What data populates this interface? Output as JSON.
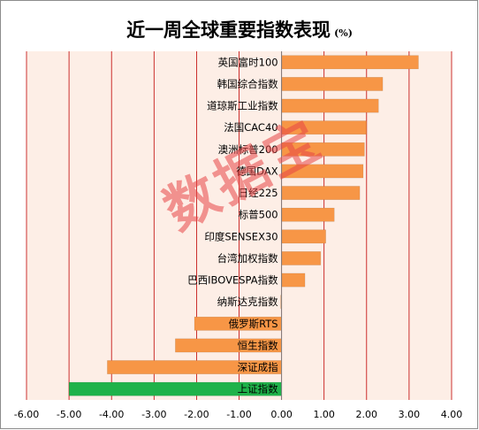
{
  "chart_data": {
    "type": "bar",
    "orientation": "horizontal",
    "title": "近一周全球重要指数表现",
    "title_unit": "(%)",
    "categories": [
      "英国富时100",
      "韩国综合指数",
      "道琼斯工业指数",
      "法国CAC40",
      "澳洲标普200",
      "德国DAX",
      "日经225",
      "标普500",
      "印度SENSEX30",
      "台湾加权指数",
      "巴西IBOVESPA指数",
      "纳斯达克指数",
      "俄罗斯RTS",
      "恒生指数",
      "深证成指",
      "上证指数"
    ],
    "values": [
      3.22,
      2.38,
      2.28,
      2.0,
      1.95,
      1.92,
      1.84,
      1.24,
      1.04,
      0.92,
      0.55,
      -0.02,
      -2.05,
      -2.5,
      -4.1,
      -5.0
    ],
    "xlim": [
      -6.0,
      4.0
    ],
    "xticks": [
      "-6.00",
      "-5.00",
      "-4.00",
      "-3.00",
      "-2.00",
      "-1.00",
      "0.00",
      "1.00",
      "2.00",
      "3.00",
      "4.00"
    ],
    "grid": "vertical",
    "legend": "none",
    "colors": {
      "bar": "#f79646",
      "highlight": "#1fb24a",
      "plot_bg": "#fdeee6",
      "gridline": "#c00000"
    },
    "highlight_category": "上证指数"
  },
  "watermark": "数据宝"
}
